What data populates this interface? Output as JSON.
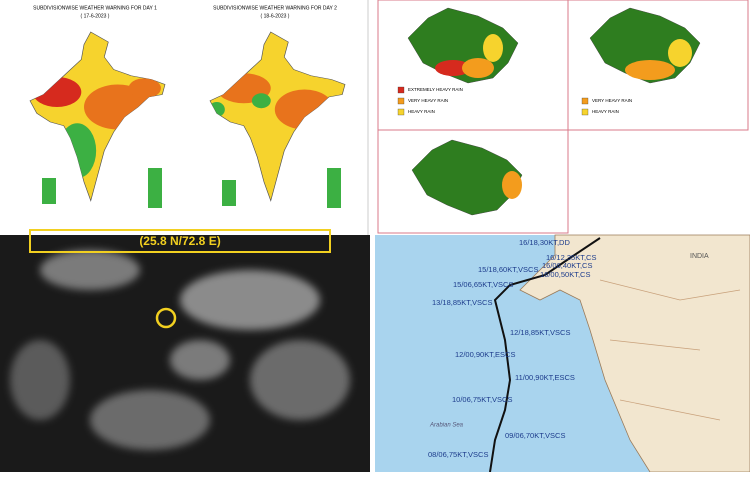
{
  "warning_maps": {
    "day1": {
      "title": "SUBDIVISIONWISE WEATHER WARNING FOR DAY 1",
      "date": "( 17-6-2023 )"
    },
    "day2": {
      "title": "SUBDIVISIONWISE WEATHER WARNING FOR DAY 2",
      "date": "( 18-6-2023 )"
    }
  },
  "rajasthan_maps": {
    "legend_1": [
      "EXTREMELY HEAVY RAIN",
      "VERY HEAVY RAIN",
      "HEAVY RAIN"
    ],
    "legend_2": [
      "VERY HEAVY RAIN",
      "HEAVY RAIN"
    ]
  },
  "satellite": {
    "location": "(25.8 N/72.8 E)"
  },
  "track_map": {
    "labels": [
      "16/18,30KT,DD",
      "16/12,35KT,CS",
      "16/06,40KT,CS",
      "16/00,50KT,CS",
      "15/18,60KT,VSCS",
      "15/06,65KT,VSCS",
      "13/18,85KT,VSCS",
      "12/18,85KT,VSCS",
      "12/00,90KT,ESCS",
      "11/00,90KT,ESCS",
      "10/06,75KT,VSCS",
      "09/06,70KT,VSCS",
      "08/06,75KT,VSCS"
    ],
    "places": [
      "INDIA",
      "Arabian Sea"
    ]
  }
}
